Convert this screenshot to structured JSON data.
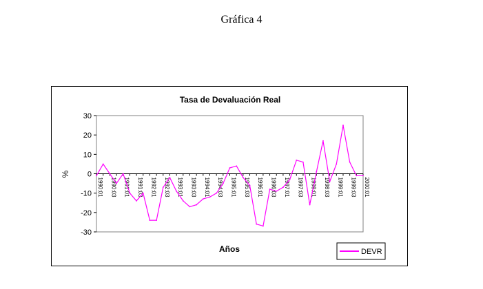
{
  "page": {
    "heading": "Gráfica 4"
  },
  "chart_data": {
    "type": "line",
    "title": "Tasa de Devaluación Real",
    "xlabel": "Años",
    "ylabel": "%",
    "ylim": [
      -30,
      30
    ],
    "y_ticks": [
      30,
      20,
      10,
      0,
      -10,
      -20,
      -30
    ],
    "x_tick_labels": [
      "1990:01",
      "1990:03",
      "1991:01",
      "1991:03",
      "1992:01",
      "1992:03",
      "1993:01",
      "1993:03",
      "1994:01",
      "1994:03",
      "1995:01",
      "1995:03",
      "1996:01",
      "1996:03",
      "1997:01",
      "1997:03",
      "1998:01",
      "1998:03",
      "1999:01",
      "1999:03",
      "2000:01"
    ],
    "grid": false,
    "legend_position": "bottom-right",
    "series": [
      {
        "name": "DEVR",
        "color": "#ff00ff",
        "x": [
          "1990:01",
          "1990:02",
          "1990:03",
          "1990:04",
          "1991:01",
          "1991:02",
          "1991:03",
          "1991:04",
          "1992:01",
          "1992:02",
          "1992:03",
          "1992:04",
          "1993:01",
          "1993:02",
          "1993:03",
          "1993:04",
          "1994:01",
          "1994:02",
          "1994:03",
          "1994:04",
          "1995:01",
          "1995:02",
          "1995:03",
          "1995:04",
          "1996:01",
          "1996:02",
          "1996:03",
          "1996:04",
          "1997:01",
          "1997:02",
          "1997:03",
          "1997:04",
          "1998:01",
          "1998:02",
          "1998:03",
          "1998:04",
          "1999:01",
          "1999:02",
          "1999:03",
          "1999:04",
          "2000:01"
        ],
        "values": [
          -1,
          5,
          0,
          -5,
          0,
          -10,
          -14,
          -10,
          -24,
          -24,
          -7,
          -2,
          -9,
          -14,
          -17,
          -16,
          -13,
          -12,
          -10,
          -5,
          3,
          4,
          -2,
          -6,
          -26,
          -27,
          -8,
          -9,
          -7,
          -3,
          7,
          6,
          -16,
          1,
          17,
          -4,
          5,
          25,
          6,
          -1,
          -1
        ]
      }
    ]
  }
}
